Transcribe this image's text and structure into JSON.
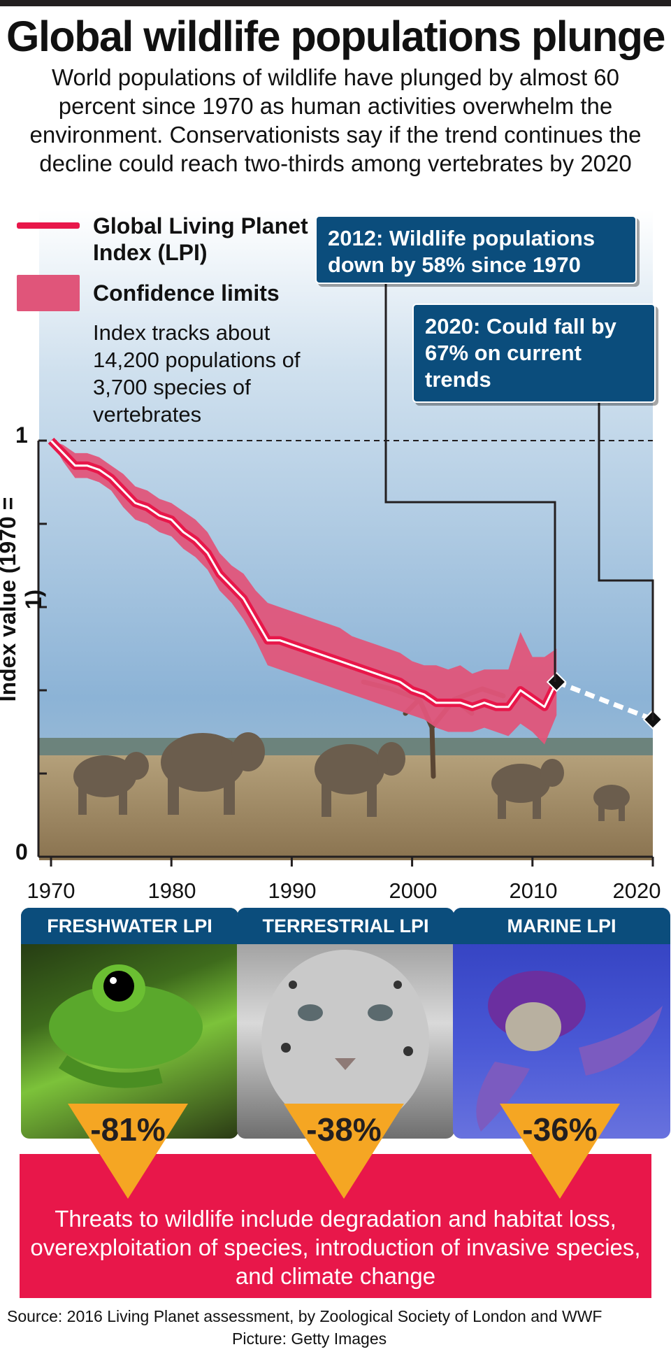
{
  "title": "Global wildlife populations plunge",
  "subtitle": "World populations of wildlife have plunged by almost 60 percent since 1970 as human activities overwhelm the environment. Conservationists say if the trend continues the decline could reach two-thirds among vertebrates by 2020",
  "legend": {
    "line_label": "Global Living Planet Index (LPI)",
    "band_label": "Confidence limits"
  },
  "note": "Index tracks about 14,200 populations of 3,700 species of vertebrates",
  "callouts": {
    "c2012": "2012: Wildlife populations down by 58% since 1970",
    "c2020": "2020: Could fall by 67% on current trends"
  },
  "colors": {
    "line": "#e8174a",
    "band": "#e0557a",
    "callout": "#0b4d7c",
    "badge": "#f5a623",
    "threat": "#e8174a"
  },
  "chart_data": {
    "type": "line",
    "ylabel": "Index value (1970 = 1)",
    "xlim": [
      1970,
      2020
    ],
    "ylim": [
      0,
      1
    ],
    "y_ticks": [
      "0",
      "1"
    ],
    "x_ticks": [
      "1970",
      "1980",
      "1990",
      "2000",
      "2010",
      "2020"
    ],
    "reference_line": {
      "y": 1,
      "style": "dashed"
    },
    "series": [
      {
        "name": "Global Living Planet Index (LPI)",
        "x": [
          1970,
          1971,
          1972,
          1973,
          1974,
          1975,
          1976,
          1977,
          1978,
          1979,
          1980,
          1981,
          1982,
          1983,
          1984,
          1985,
          1986,
          1987,
          1988,
          1989,
          1990,
          1991,
          1992,
          1993,
          1994,
          1995,
          1996,
          1997,
          1998,
          1999,
          2000,
          2001,
          2002,
          2003,
          2004,
          2005,
          2006,
          2007,
          2008,
          2009,
          2010,
          2011,
          2012
        ],
        "values": [
          1.0,
          0.97,
          0.94,
          0.94,
          0.93,
          0.91,
          0.88,
          0.85,
          0.84,
          0.82,
          0.81,
          0.78,
          0.76,
          0.73,
          0.68,
          0.65,
          0.62,
          0.57,
          0.52,
          0.52,
          0.51,
          0.5,
          0.49,
          0.48,
          0.47,
          0.46,
          0.45,
          0.44,
          0.43,
          0.42,
          0.4,
          0.39,
          0.37,
          0.37,
          0.37,
          0.36,
          0.37,
          0.36,
          0.36,
          0.4,
          0.38,
          0.36,
          0.42
        ]
      },
      {
        "name": "Projection",
        "style": "dashed",
        "x": [
          2012,
          2020
        ],
        "values": [
          0.42,
          0.33
        ]
      }
    ],
    "confidence_limits": {
      "x": [
        1970,
        1971,
        1972,
        1973,
        1974,
        1975,
        1976,
        1977,
        1978,
        1979,
        1980,
        1981,
        1982,
        1983,
        1984,
        1985,
        1986,
        1987,
        1988,
        1989,
        1990,
        1991,
        1992,
        1993,
        1994,
        1995,
        1996,
        1997,
        1998,
        1999,
        2000,
        2001,
        2002,
        2003,
        2004,
        2005,
        2006,
        2007,
        2008,
        2009,
        2010,
        2011,
        2012
      ],
      "upper": [
        1.0,
        0.99,
        0.97,
        0.97,
        0.96,
        0.94,
        0.92,
        0.89,
        0.88,
        0.86,
        0.85,
        0.83,
        0.81,
        0.78,
        0.73,
        0.7,
        0.68,
        0.64,
        0.61,
        0.6,
        0.59,
        0.58,
        0.57,
        0.56,
        0.55,
        0.53,
        0.52,
        0.51,
        0.5,
        0.49,
        0.47,
        0.46,
        0.46,
        0.45,
        0.46,
        0.44,
        0.45,
        0.45,
        0.45,
        0.54,
        0.48,
        0.48,
        0.5
      ],
      "lower": [
        1.0,
        0.95,
        0.91,
        0.91,
        0.9,
        0.88,
        0.84,
        0.81,
        0.8,
        0.78,
        0.77,
        0.74,
        0.72,
        0.69,
        0.64,
        0.61,
        0.57,
        0.52,
        0.46,
        0.45,
        0.44,
        0.43,
        0.42,
        0.41,
        0.4,
        0.39,
        0.38,
        0.37,
        0.36,
        0.35,
        0.34,
        0.33,
        0.31,
        0.3,
        0.3,
        0.3,
        0.31,
        0.3,
        0.29,
        0.32,
        0.3,
        0.27,
        0.34
      ]
    },
    "markers": [
      {
        "x": 2012,
        "y": 0.42
      },
      {
        "x": 2020,
        "y": 0.33
      }
    ]
  },
  "panels": [
    {
      "header": "FRESHWATER LPI",
      "change": "-81%",
      "picture": "green tree frog"
    },
    {
      "header": "TERRESTRIAL LPI",
      "change": "-38%",
      "picture": "snow leopard"
    },
    {
      "header": "MARINE LPI",
      "change": "-36%",
      "picture": "sea turtle"
    }
  ],
  "threats": "Threats to wildlife include degradation and habitat loss, overexploitation of species, introduction of invasive species, and climate change",
  "source": "Source: 2016 Living Planet assessment, by Zoological Society of London and WWF",
  "picture_credit": "Picture: Getty Images"
}
